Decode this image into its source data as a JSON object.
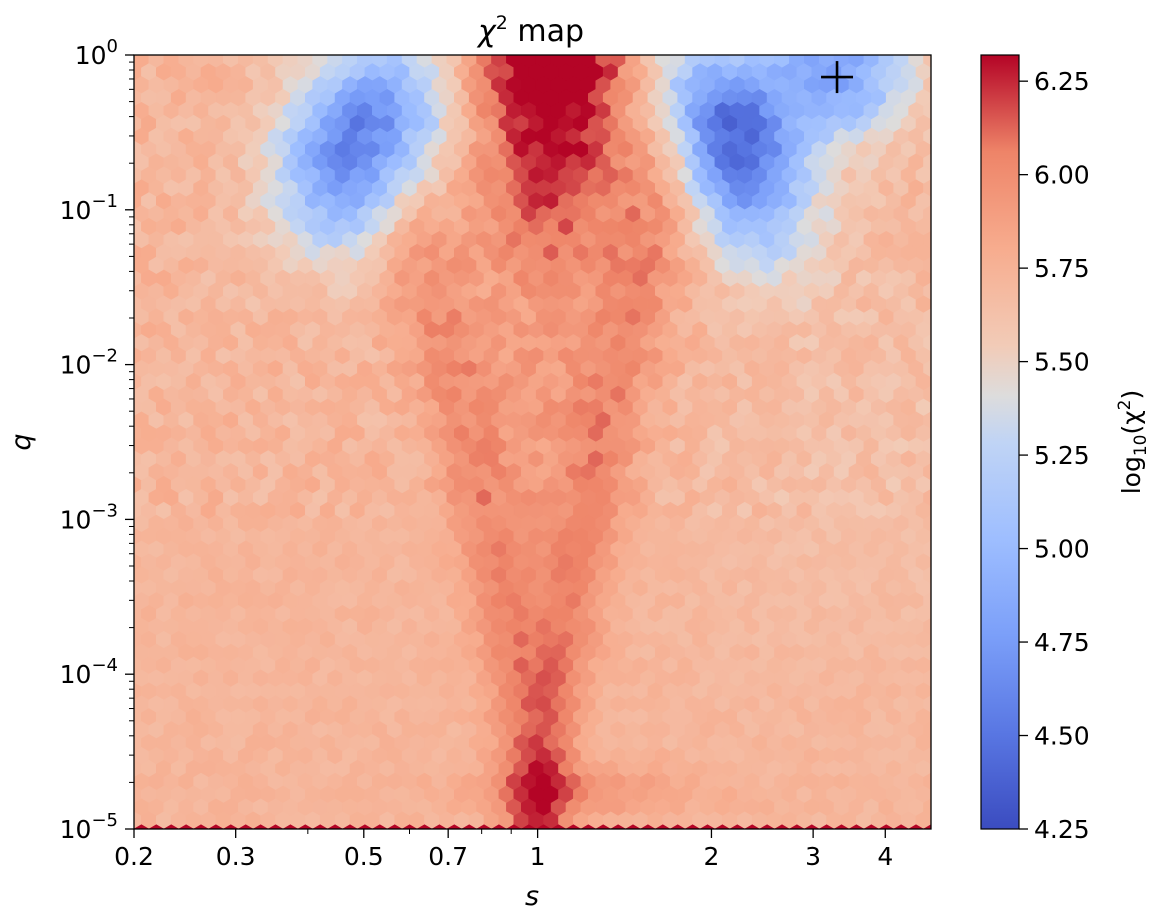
{
  "chart_data": {
    "type": "heatmap",
    "title_symbol": "χ",
    "title_exp": "2",
    "title_rest": " map",
    "xlabel": "s",
    "ylabel": "q",
    "xscale": "log",
    "yscale": "log",
    "xlim": [
      0.2,
      4.8
    ],
    "ylim": [
      1e-05,
      1
    ],
    "x_ticks": [
      {
        "value": 0.2,
        "label": "0.2"
      },
      {
        "value": 0.3,
        "label": "0.3"
      },
      {
        "value": 0.5,
        "label": "0.5"
      },
      {
        "value": 0.7,
        "label": "0.7"
      },
      {
        "value": 1,
        "label": "1"
      },
      {
        "value": 2,
        "label": "2"
      },
      {
        "value": 3,
        "label": "3"
      },
      {
        "value": 4,
        "label": "4"
      }
    ],
    "y_ticks": [
      {
        "value": 1e-05,
        "base": "10",
        "exp": "−5"
      },
      {
        "value": 0.0001,
        "base": "10",
        "exp": "−4"
      },
      {
        "value": 0.001,
        "base": "10",
        "exp": "−3"
      },
      {
        "value": 0.01,
        "base": "10",
        "exp": "−2"
      },
      {
        "value": 0.1,
        "base": "10",
        "exp": "−1"
      },
      {
        "value": 1,
        "base": "10",
        "exp": "0"
      }
    ],
    "colorbar": {
      "label_prefix": "log",
      "label_sub": "10",
      "label_open": "(χ",
      "label_exp": "2",
      "label_close": ")",
      "colormap": "coolwarm",
      "range": [
        4.25,
        6.32
      ],
      "ticks": [
        "4.25",
        "4.50",
        "4.75",
        "5.00",
        "5.25",
        "5.50",
        "5.75",
        "6.00",
        "6.25"
      ]
    },
    "marker": {
      "symbol": "+",
      "s": 3.3,
      "q": 0.72,
      "color": "#000000"
    },
    "grid": false,
    "cells_description_values": {
      "background_level": 5.72,
      "caustic_band_peak": 6.05,
      "top_center_peak": 6.32,
      "left_lobe_min": 4.45,
      "right_lobe_min": 4.42
    }
  }
}
